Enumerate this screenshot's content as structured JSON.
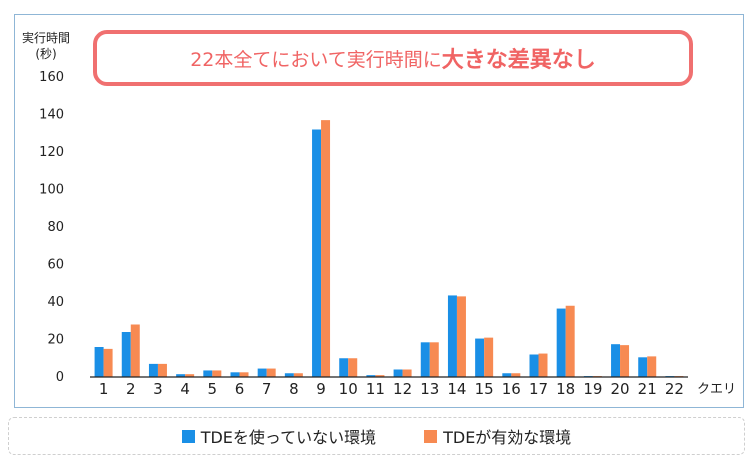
{
  "chart_data": {
    "type": "bar",
    "ylabel": "実行時間\n(秒)",
    "xlabel": "クエリ",
    "ylim": [
      0,
      160
    ],
    "yticks": [
      0,
      20,
      40,
      60,
      80,
      100,
      120,
      140,
      160
    ],
    "grid": false,
    "legend_position": "bottom",
    "categories": [
      "1",
      "2",
      "3",
      "4",
      "5",
      "6",
      "7",
      "8",
      "9",
      "10",
      "11",
      "12",
      "13",
      "14",
      "15",
      "16",
      "17",
      "18",
      "19",
      "20",
      "21",
      "22"
    ],
    "series": [
      {
        "name": "TDEを使っていない環境",
        "color": "#1a8fe6",
        "values": [
          16,
          24,
          7,
          1.5,
          3.5,
          2.5,
          4.5,
          2,
          132,
          10,
          1,
          4,
          18.5,
          43.5,
          20.5,
          2,
          12,
          36.5,
          0.5,
          17.5,
          10.5,
          0.5
        ]
      },
      {
        "name": "TDEが有効な環境",
        "color": "#f78a52",
        "values": [
          15,
          28,
          7,
          1.5,
          3.5,
          2.5,
          4.5,
          2,
          137,
          10,
          1,
          4,
          18.5,
          43,
          21,
          2,
          12.5,
          38,
          0.5,
          17,
          11,
          0.5
        ]
      }
    ]
  },
  "callout": {
    "text_normal": "22本全てにおいて実行時間に",
    "text_bold": "大きな差異なし"
  }
}
